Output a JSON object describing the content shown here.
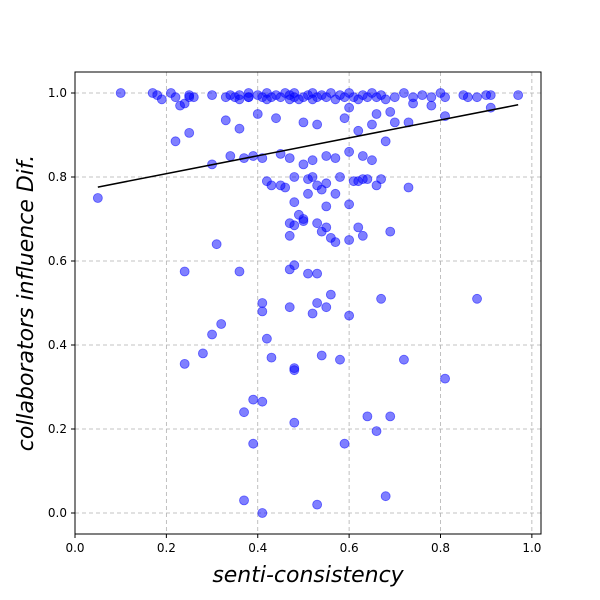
{
  "chart_data": {
    "type": "scatter",
    "title": "",
    "xlabel": "senti-consistency",
    "ylabel": "collaborators influence Dif.",
    "xlim": [
      0.0,
      1.02
    ],
    "ylim": [
      -0.05,
      1.05
    ],
    "xticks": [
      "0.0",
      "0.2",
      "0.4",
      "0.6",
      "0.8",
      "1.0"
    ],
    "yticks": [
      "0.0",
      "0.2",
      "0.4",
      "0.6",
      "0.8",
      "1.0"
    ],
    "grid": true,
    "colors": {
      "points": "#0000ff",
      "trend": "#000000"
    },
    "trendline": {
      "x": [
        0.05,
        0.97
      ],
      "y": [
        0.776,
        0.972
      ]
    },
    "series": [
      {
        "x": [
          0.05,
          0.1,
          0.17,
          0.18,
          0.19,
          0.21,
          0.22,
          0.23,
          0.24,
          0.25,
          0.25,
          0.26,
          0.3,
          0.33,
          0.34,
          0.35,
          0.36,
          0.36,
          0.38,
          0.38,
          0.38,
          0.4,
          0.41,
          0.42,
          0.42,
          0.43,
          0.44,
          0.45,
          0.46,
          0.47,
          0.47,
          0.48,
          0.48,
          0.49,
          0.5,
          0.51,
          0.52,
          0.52,
          0.53,
          0.54,
          0.55,
          0.56,
          0.57,
          0.58,
          0.59,
          0.6,
          0.61,
          0.62,
          0.63,
          0.64,
          0.65,
          0.66,
          0.67,
          0.68,
          0.7,
          0.72,
          0.74,
          0.76,
          0.78,
          0.8,
          0.81,
          0.85,
          0.86,
          0.88,
          0.9,
          0.91,
          0.97,
          0.22,
          0.25,
          0.33,
          0.36,
          0.4,
          0.44,
          0.5,
          0.53,
          0.59,
          0.62,
          0.66,
          0.7,
          0.73,
          0.78,
          0.81,
          0.91,
          0.3,
          0.34,
          0.37,
          0.39,
          0.41,
          0.45,
          0.47,
          0.5,
          0.52,
          0.55,
          0.57,
          0.6,
          0.63,
          0.65,
          0.68,
          0.42,
          0.46,
          0.48,
          0.51,
          0.53,
          0.55,
          0.58,
          0.61,
          0.64,
          0.66,
          0.43,
          0.45,
          0.47,
          0.48,
          0.5,
          0.51,
          0.52,
          0.54,
          0.55,
          0.57,
          0.6,
          0.62,
          0.63,
          0.67,
          0.73,
          0.47,
          0.48,
          0.49,
          0.5,
          0.53,
          0.54,
          0.55,
          0.56,
          0.57,
          0.6,
          0.62,
          0.63,
          0.69,
          0.31,
          0.24,
          0.36,
          0.47,
          0.48,
          0.51,
          0.53,
          0.56,
          0.53,
          0.41,
          0.41,
          0.47,
          0.52,
          0.55,
          0.6,
          0.32,
          0.3,
          0.42,
          0.28,
          0.24,
          0.43,
          0.48,
          0.48,
          0.58,
          0.54,
          0.72,
          0.67,
          0.81,
          0.88,
          0.39,
          0.41,
          0.37,
          0.64,
          0.69,
          0.48,
          0.66,
          0.39,
          0.59,
          0.37,
          0.68,
          0.53,
          0.41,
          0.6,
          0.65,
          0.69,
          0.74
        ],
        "y": [
          0.75,
          1.0,
          1.0,
          0.995,
          0.985,
          1.0,
          0.99,
          0.97,
          0.975,
          0.995,
          0.99,
          0.99,
          0.995,
          0.99,
          0.995,
          0.99,
          0.985,
          0.995,
          0.99,
          1.0,
          0.99,
          0.995,
          0.99,
          1.0,
          0.985,
          0.99,
          0.995,
          0.99,
          1.0,
          0.985,
          0.995,
          0.99,
          1.0,
          0.985,
          0.99,
          0.995,
          1.0,
          0.985,
          0.99,
          0.995,
          0.99,
          1.0,
          0.985,
          0.995,
          0.99,
          1.0,
          0.99,
          0.985,
          0.995,
          0.99,
          1.0,
          0.99,
          0.995,
          0.985,
          0.99,
          1.0,
          0.99,
          0.995,
          0.99,
          1.0,
          0.99,
          0.995,
          0.99,
          0.99,
          0.995,
          0.995,
          0.995,
          0.885,
          0.905,
          0.935,
          0.915,
          0.95,
          0.94,
          0.93,
          0.925,
          0.94,
          0.91,
          0.95,
          0.93,
          0.93,
          0.97,
          0.945,
          0.965,
          0.83,
          0.85,
          0.845,
          0.85,
          0.845,
          0.855,
          0.845,
          0.83,
          0.84,
          0.85,
          0.845,
          0.86,
          0.85,
          0.84,
          0.885,
          0.79,
          0.775,
          0.8,
          0.795,
          0.78,
          0.785,
          0.8,
          0.79,
          0.795,
          0.78,
          0.78,
          0.78,
          0.69,
          0.74,
          0.7,
          0.76,
          0.8,
          0.77,
          0.73,
          0.76,
          0.735,
          0.79,
          0.795,
          0.795,
          0.775,
          0.66,
          0.685,
          0.71,
          0.695,
          0.69,
          0.67,
          0.68,
          0.655,
          0.645,
          0.65,
          0.68,
          0.66,
          0.67,
          0.64,
          0.575,
          0.575,
          0.58,
          0.59,
          0.57,
          0.57,
          0.52,
          0.5,
          0.5,
          0.48,
          0.49,
          0.475,
          0.49,
          0.47,
          0.45,
          0.425,
          0.415,
          0.38,
          0.355,
          0.37,
          0.345,
          0.34,
          0.365,
          0.375,
          0.365,
          0.51,
          0.32,
          0.51,
          0.27,
          0.265,
          0.24,
          0.23,
          0.23,
          0.215,
          0.195,
          0.165,
          0.165,
          0.03,
          0.04,
          0.02,
          0.0,
          0.965,
          0.925,
          0.955,
          0.975
        ]
      }
    ]
  }
}
